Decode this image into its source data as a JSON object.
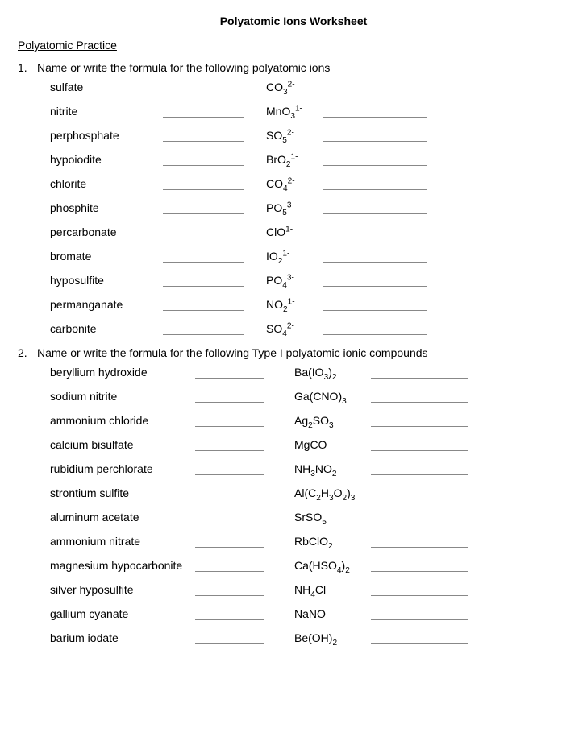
{
  "title": "Polyatomic Ions Worksheet",
  "subtitle": "Polyatomic Practice",
  "q1": {
    "num": "1.",
    "text": "Name or write the formula for the following polyatomic ions",
    "rows": [
      {
        "name": "sulfate",
        "base": "CO",
        "sub": "3",
        "sup": "2-"
      },
      {
        "name": "nitrite",
        "base": "MnO",
        "sub": "3",
        "sup": "1-"
      },
      {
        "name": "perphosphate",
        "base": "SO",
        "sub": "5",
        "sup": "2-"
      },
      {
        "name": "hypoiodite",
        "base": "BrO",
        "sub": "2",
        "sup": "1-"
      },
      {
        "name": "chlorite",
        "base": "CO",
        "sub": "4",
        "sup": "2-"
      },
      {
        "name": "phosphite",
        "base": "PO",
        "sub": "5",
        "sup": "3-"
      },
      {
        "name": "percarbonate",
        "base": "ClO",
        "sub": "",
        "sup": "1-"
      },
      {
        "name": "bromate",
        "base": "IO",
        "sub": "2",
        "sup": "1-"
      },
      {
        "name": "hyposulfite",
        "base": "PO",
        "sub": "4",
        "sup": "3-"
      },
      {
        "name": "permanganate",
        "base": "NO",
        "sub": "2",
        "sup": "1-"
      },
      {
        "name": "carbonite",
        "base": "SO",
        "sub": "4",
        "sup": "2-"
      }
    ]
  },
  "q2": {
    "num": "2.",
    "text": "Name or write the formula for the following Type I polyatomic ionic compounds",
    "rows": [
      {
        "name": "beryllium hydroxide",
        "formula_html": "Ba(IO<sub>3</sub>)<sub>2</sub>"
      },
      {
        "name": "sodium nitrite",
        "formula_html": "Ga(CNO)<sub>3</sub>"
      },
      {
        "name": "ammonium chloride",
        "formula_html": "Ag<sub>2</sub>SO<sub>3</sub>"
      },
      {
        "name": "calcium bisulfate",
        "formula_html": "MgCO"
      },
      {
        "name": "rubidium perchlorate",
        "formula_html": "NH<sub>3</sub>NO<sub>2</sub>"
      },
      {
        "name": "strontium sulfite",
        "formula_html": "Al(C<sub>2</sub>H<sub>3</sub>O<sub>2</sub>)<sub>3</sub>"
      },
      {
        "name": "aluminum acetate",
        "formula_html": "SrSO<sub>5</sub>"
      },
      {
        "name": "ammonium nitrate",
        "formula_html": "RbClO<sub>2</sub>"
      },
      {
        "name": "magnesium hypocarbonite",
        "formula_html": "Ca(HSO<sub>4</sub>)<sub>2</sub>"
      },
      {
        "name": "silver hyposulfite",
        "formula_html": "NH<sub>4</sub>Cl"
      },
      {
        "name": "gallium cyanate",
        "formula_html": "NaNO"
      },
      {
        "name": "barium  iodate",
        "formula_html": "Be(OH)<sub>2</sub>"
      }
    ]
  }
}
